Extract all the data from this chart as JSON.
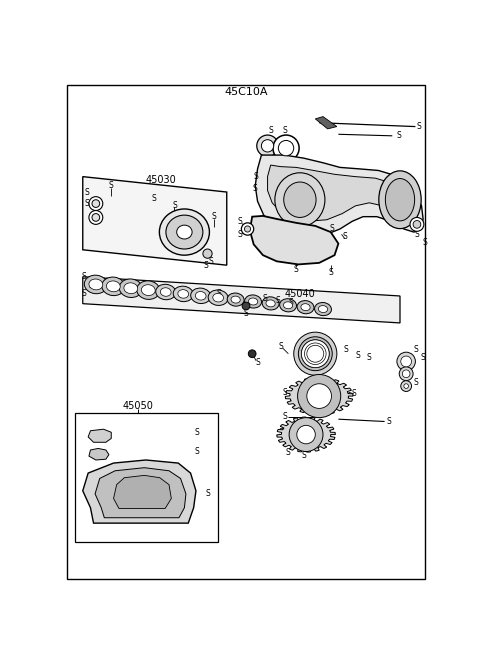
{
  "title": "45C10A",
  "bg_color": "#ffffff",
  "lc": "#000000",
  "tc": "#000000",
  "figsize": [
    4.8,
    6.57
  ],
  "dpi": 100,
  "label_45030": "45030",
  "label_45040": "45040",
  "label_45050": "45050"
}
